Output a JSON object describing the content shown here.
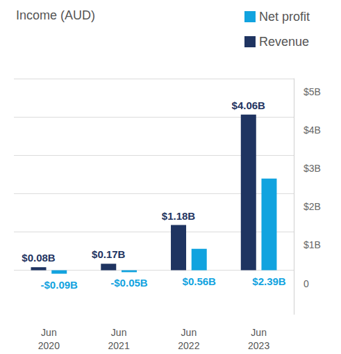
{
  "chart_data": {
    "type": "bar",
    "title": "Income (AUD)",
    "categories": [
      "Jun\n2020",
      "Jun\n2021",
      "Jun\n2022",
      "Jun\n2023"
    ],
    "series": [
      {
        "name": "Revenue",
        "color": "#1f3461",
        "values": [
          0.08,
          0.17,
          1.18,
          4.06
        ],
        "value_labels": [
          "$0.08B",
          "$0.17B",
          "$1.18B",
          "$4.06B"
        ]
      },
      {
        "name": "Net profit",
        "color": "#11a3df",
        "values": [
          -0.09,
          -0.05,
          0.56,
          2.39
        ],
        "value_labels": [
          "-$0.09B",
          "-$0.05B",
          "$0.56B",
          "$2.39B"
        ]
      }
    ],
    "ylim": [
      -1.15,
      5
    ],
    "yticks": [
      0,
      {
        "value": 1,
        "label": "$1B"
      },
      {
        "value": 2,
        "label": "$2B"
      },
      {
        "value": 3,
        "label": "$3B"
      },
      {
        "value": 4,
        "label": "$4B"
      },
      {
        "value": 5,
        "label": "$5B"
      }
    ],
    "grid": true,
    "legend": "top-right",
    "data_labels": true
  }
}
